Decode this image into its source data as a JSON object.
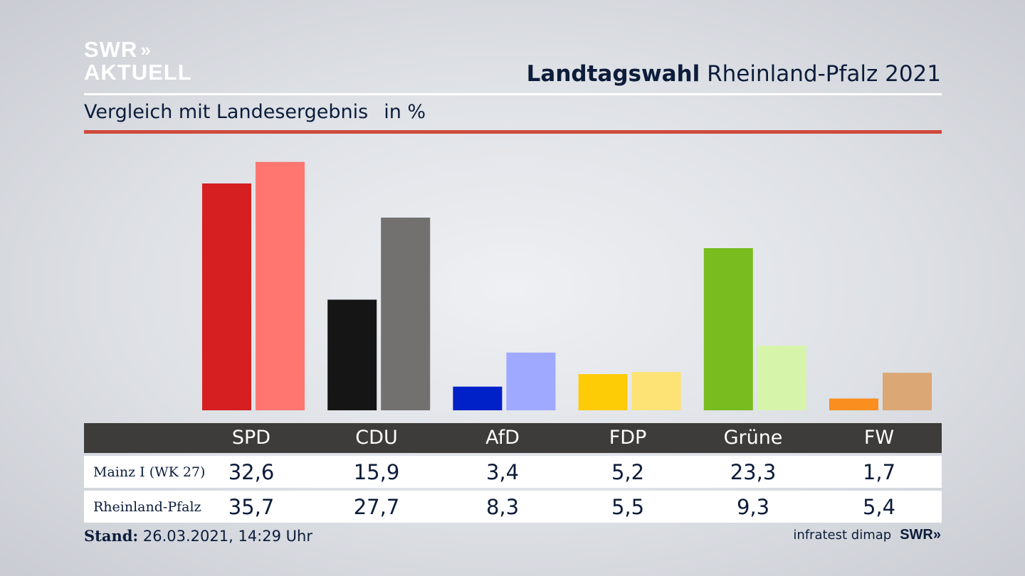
{
  "logo": {
    "line1": "SWR",
    "line1_arrows": "»",
    "line2": "AKTUELL"
  },
  "header": {
    "title_bold": "Landtagswahl",
    "title_rest": "Rheinland-Pfalz 2021"
  },
  "subtitle": {
    "text": "Vergleich mit Landesergebnis",
    "unit": "in %"
  },
  "colors": {
    "rule_red": "#cf4a3c",
    "table_header": "#3d3c3a",
    "text": "#0c1c3a"
  },
  "chart_data": {
    "type": "bar",
    "categories": [
      "SPD",
      "CDU",
      "AfD",
      "FDP",
      "Grüne",
      "FW"
    ],
    "series": [
      {
        "name": "Mainz I  (WK 27)",
        "values": [
          32.6,
          15.9,
          3.4,
          5.2,
          23.3,
          1.7
        ],
        "colors": [
          "#d51f21",
          "#151515",
          "#0020c8",
          "#fecb07",
          "#78bc1f",
          "#fa8e1f"
        ]
      },
      {
        "name": "Rheinland-Pfalz",
        "values": [
          35.7,
          27.7,
          8.3,
          5.5,
          9.3,
          5.4
        ],
        "colors": [
          "#ff7670",
          "#727170",
          "#9ea9ff",
          "#fde275",
          "#d6f5ab",
          "#dba774"
        ]
      }
    ],
    "ylim": [
      0,
      37
    ]
  },
  "table": {
    "header_labels": [
      "SPD",
      "CDU",
      "AfD",
      "FDP",
      "Grüne",
      "FW"
    ],
    "rows": [
      {
        "label": "Mainz I  (WK 27)",
        "values": [
          "32,6",
          "15,9",
          "3,4",
          "5,2",
          "23,3",
          "1,7"
        ]
      },
      {
        "label": "Rheinland-Pfalz",
        "values": [
          "35,7",
          "27,7",
          "8,3",
          "5,5",
          "9,3",
          "5,4"
        ]
      }
    ]
  },
  "footer": {
    "stand_label": "Stand:",
    "stand_value": "26.03.2021, 14:29 Uhr",
    "source": "infratest dimap",
    "brand": "SWR»"
  }
}
